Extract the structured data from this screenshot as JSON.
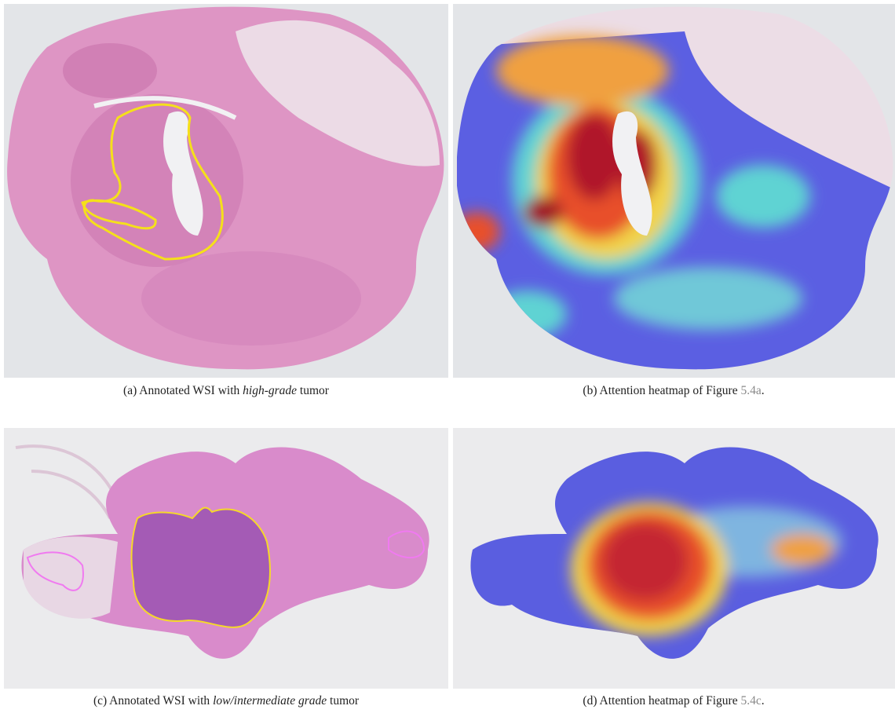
{
  "figures": [
    {
      "label": "(a)",
      "text": "Annotated WSI with",
      "emphasis": "high-grade",
      "suffix": "tumor"
    },
    {
      "label": "(b)",
      "text": "Attention heatmap of Figure",
      "reference": "5.4a",
      "suffix": "."
    },
    {
      "label": "(c)",
      "text": "Annotated WSI with",
      "emphasis": "low/intermediate grade",
      "suffix": "tumor"
    },
    {
      "label": "(d)",
      "text": "Attention heatmap of Figure",
      "reference": "5.4c",
      "suffix": "."
    }
  ]
}
